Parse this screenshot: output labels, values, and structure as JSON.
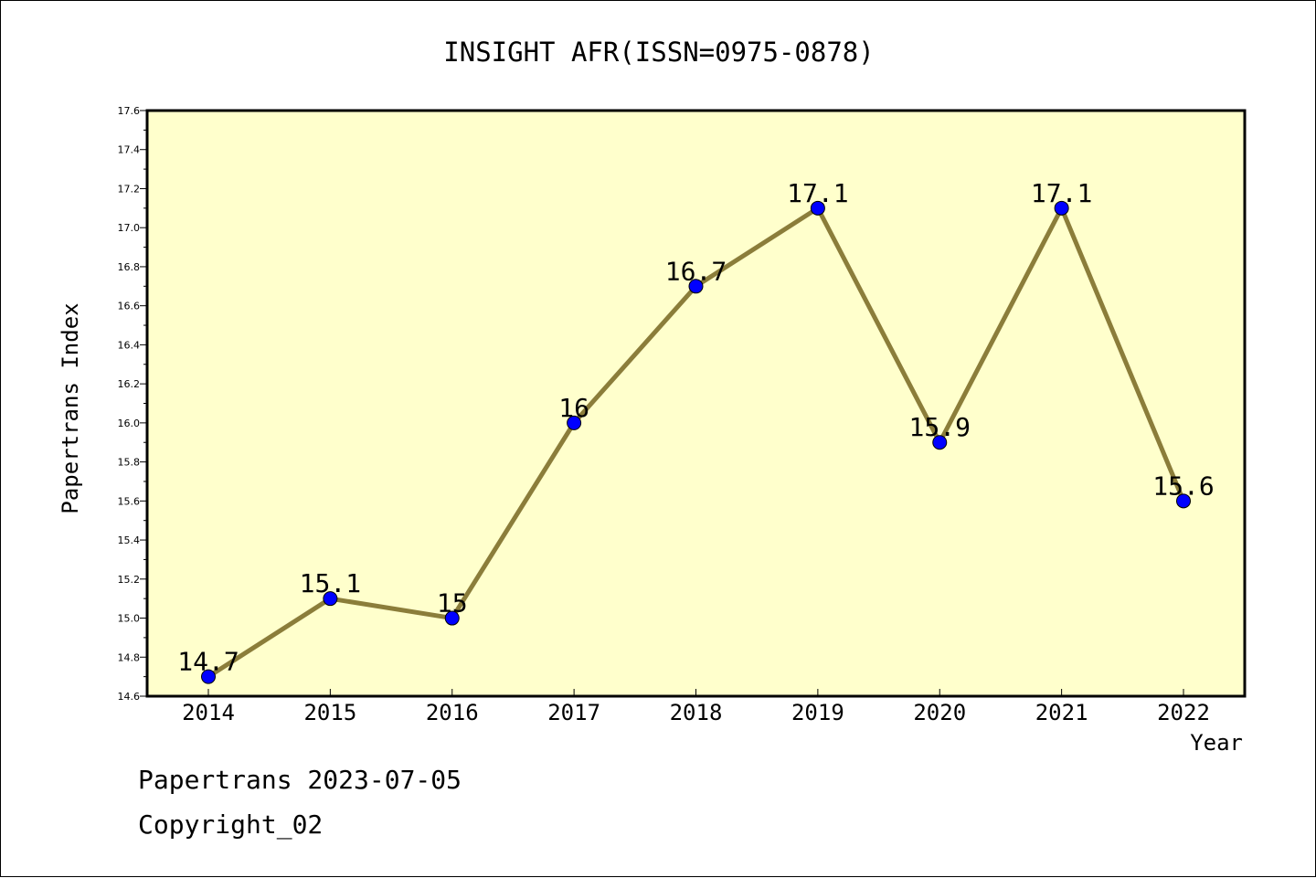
{
  "chart_data": {
    "type": "line",
    "title": "INSIGHT AFR(ISSN=0975-0878)",
    "xlabel": "Year",
    "ylabel": "Papertrans Index",
    "categories": [
      "2014",
      "2015",
      "2016",
      "2017",
      "2018",
      "2019",
      "2020",
      "2021",
      "2022"
    ],
    "series": [
      {
        "values": [
          14.7,
          15.1,
          15.0,
          16.0,
          16.7,
          17.1,
          15.9,
          17.1,
          15.6
        ],
        "data_labels": [
          "14.7",
          "15.1",
          "15",
          "16",
          "16.7",
          "17.1",
          "15.9",
          "17.1",
          "15.6"
        ]
      }
    ],
    "ylim": [
      14.6,
      17.6
    ],
    "yticks": [
      "14.6",
      "14.8",
      "15.0",
      "15.2",
      "15.4",
      "15.6",
      "15.8",
      "16.0",
      "16.2",
      "16.4",
      "16.6",
      "16.8",
      "17.0",
      "17.2",
      "17.4",
      "17.6"
    ],
    "grid": false,
    "colors": {
      "plot_background": "#ffffcc",
      "line": "#8b7d3a",
      "marker": "#0000ff"
    }
  },
  "footer": {
    "line1": "Papertrans 2023-07-05",
    "line2": "Copyright_02"
  }
}
